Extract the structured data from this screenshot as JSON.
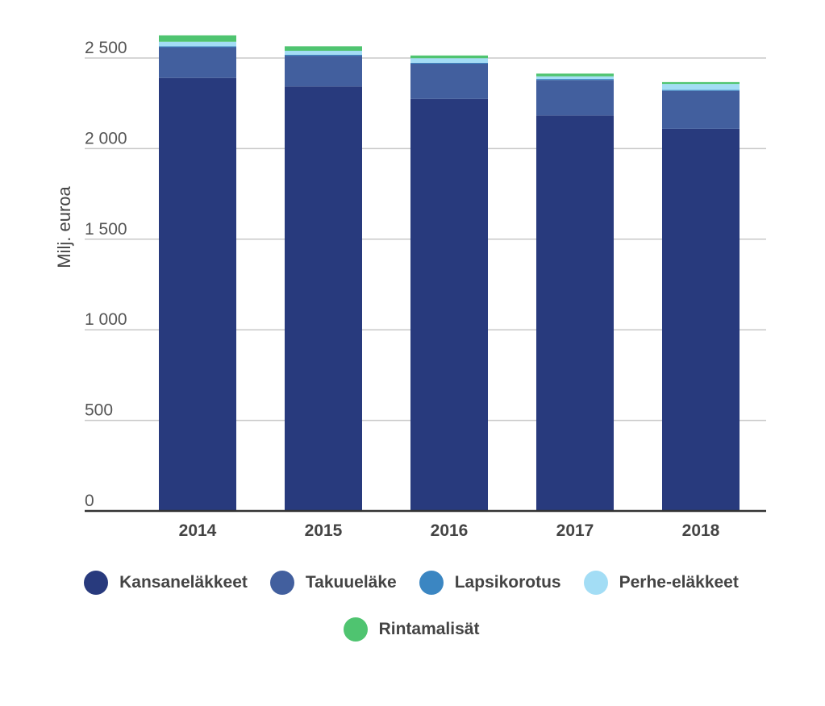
{
  "chart_data": {
    "type": "bar",
    "stacked": true,
    "categories": [
      "2014",
      "2015",
      "2016",
      "2017",
      "2018"
    ],
    "ylabel": "Milj. euroa",
    "ylim": [
      0,
      2600
    ],
    "yticks": [
      0,
      500,
      1000,
      1500,
      2000,
      2500
    ],
    "ytick_labels": [
      "0",
      "500",
      "1 000",
      "1 500",
      "2 000",
      "2 500"
    ],
    "grid": true,
    "legend_position": "bottom",
    "series": [
      {
        "name": "Kansaneläkkeet",
        "color": "#283a7d",
        "values": [
          2390,
          2343,
          2274,
          2183,
          2109
        ]
      },
      {
        "name": "Takuueläke",
        "color": "#425f9e",
        "values": [
          170,
          170,
          195,
          196,
          210
        ]
      },
      {
        "name": "Lapsikorotus",
        "color": "#3b86c2",
        "values": [
          5,
          5,
          5,
          5,
          5
        ]
      },
      {
        "name": "Perhe-eläkkeet",
        "color": "#a3ddf5",
        "values": [
          25,
          22,
          25,
          15,
          33
        ]
      },
      {
        "name": "Rintamalisät",
        "color": "#4fc470",
        "values": [
          35,
          25,
          15,
          15,
          10
        ]
      }
    ]
  }
}
